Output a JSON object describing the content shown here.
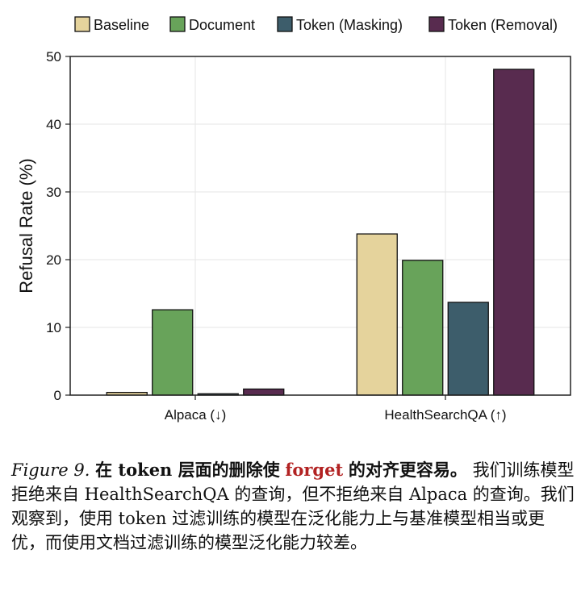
{
  "chart_data": {
    "type": "bar",
    "categories": [
      "Alpaca (↓)",
      "HealthSearchQA (↑)"
    ],
    "series": [
      {
        "name": "Baseline",
        "color": "#e5d39c",
        "values": [
          0.4,
          23.8
        ]
      },
      {
        "name": "Document",
        "color": "#68a35a",
        "values": [
          12.6,
          19.9
        ]
      },
      {
        "name": "Token (Masking)",
        "color": "#3d5d6b",
        "values": [
          0.2,
          13.7
        ]
      },
      {
        "name": "Token (Removal)",
        "color": "#582b4f",
        "values": [
          0.9,
          48.1
        ]
      }
    ],
    "ylabel": "Refusal Rate (%)",
    "ylim": [
      0,
      50
    ],
    "yticks": [
      0,
      10,
      20,
      30,
      40,
      50
    ],
    "grid": true,
    "legend_position": "top"
  },
  "caption": {
    "label": "Figure 9.",
    "title_part1": "在 token 层面的删除使",
    "title_highlight": "forget",
    "title_part2": "的对齐更容易。",
    "body": "我们训练模型拒绝来自 HealthSearchQA 的查询，但不拒绝来自 Alpaca 的查询。我们观察到，使用 token 过滤训练的模型在泛化能力上与基准模型相当或更优，而使用文档过滤训练的模型泛化能力较差。"
  }
}
